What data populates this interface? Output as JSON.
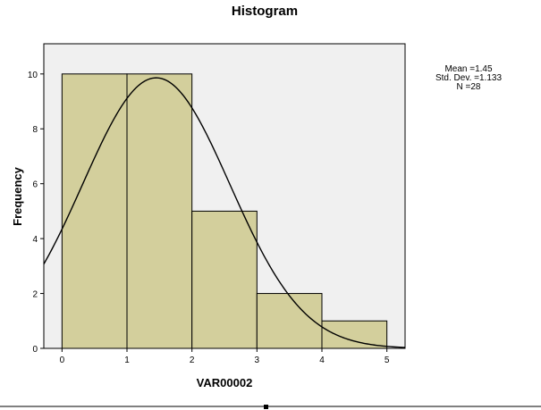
{
  "chart_data": {
    "type": "bar",
    "subtype": "histogram",
    "title": "Histogram",
    "xlabel": "VAR00002",
    "ylabel": "Frequency",
    "xlim": [
      -0.28,
      5.28
    ],
    "ylim": [
      0,
      11.1
    ],
    "x_ticks": [
      "0",
      "1",
      "2",
      "3",
      "4",
      "5"
    ],
    "y_ticks": [
      "0",
      "2",
      "4",
      "6",
      "8",
      "10"
    ],
    "bins": [
      {
        "start": 0,
        "end": 1,
        "value": 10
      },
      {
        "start": 1,
        "end": 2,
        "value": 10
      },
      {
        "start": 2,
        "end": 3,
        "value": 5
      },
      {
        "start": 3,
        "end": 4,
        "value": 2
      },
      {
        "start": 4,
        "end": 5,
        "value": 1
      }
    ],
    "normal_curve": {
      "mean": 1.45,
      "std_dev": 1.133,
      "n": 28,
      "bin_width": 1
    },
    "stats": [
      "Mean =1.45",
      "Std. Dev. =1.133",
      "N =28"
    ],
    "grid": false,
    "colors": {
      "bar_fill": "#d3cf9c",
      "plot_bg": "#f0f0f0",
      "curve": "#000000"
    }
  }
}
